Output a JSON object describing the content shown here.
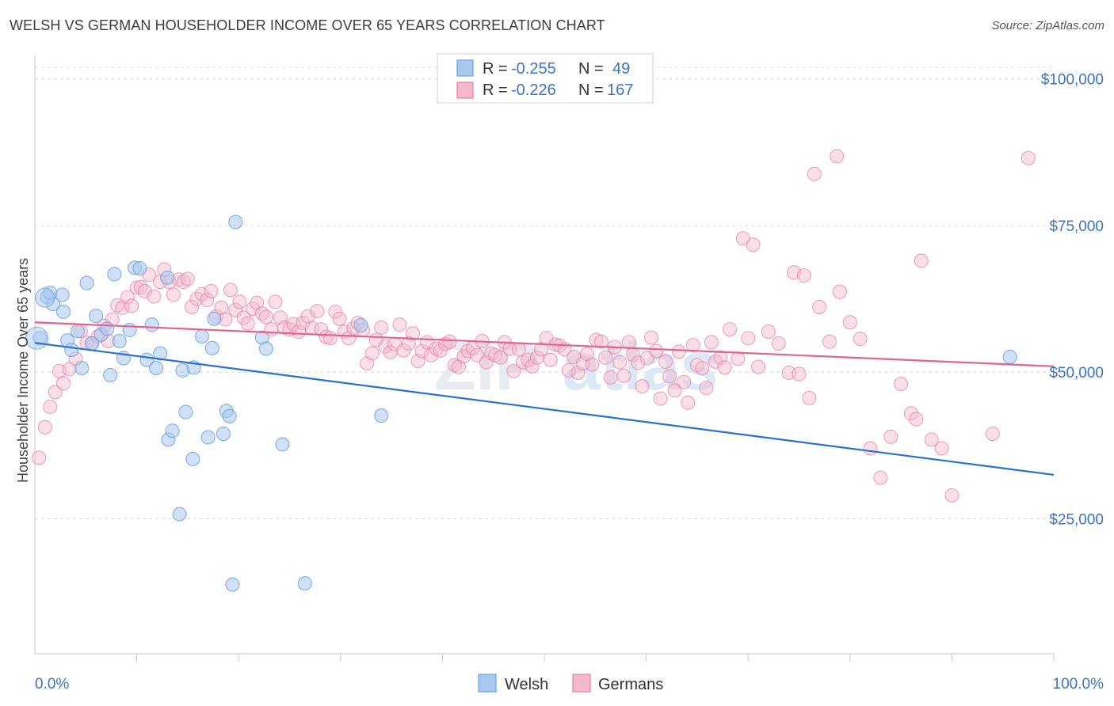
{
  "title": "WELSH VS GERMAN HOUSEHOLDER INCOME OVER 65 YEARS CORRELATION CHART",
  "source": "Source: ZipAtlas.com",
  "colors": {
    "welsh": "#6a9fe0",
    "welsh_fill": "#a9c8f0",
    "german": "#e87fa3",
    "german_fill": "#f4b8cc",
    "welsh_line": "#2a6fd6",
    "german_line": "#e0648f"
  },
  "chart_data": {
    "type": "scatter",
    "title": "WELSH VS GERMAN HOUSEHOLDER INCOME OVER 65 YEARS CORRELATION CHART",
    "xlabel": "",
    "ylabel": "Householder Income Over 65 years",
    "xlim": [
      0,
      100
    ],
    "ylim": [
      2000,
      104000
    ],
    "x_tick_labels": [
      "0.0%",
      "100.0%"
    ],
    "y_ticks": [
      25000,
      50000,
      75000,
      100000
    ],
    "y_tick_labels": [
      "$25,000",
      "$50,000",
      "$75,000",
      "$100,000"
    ],
    "grid": "horizontal dashed",
    "legend_position": "top-center",
    "stats": [
      {
        "r_label": "R =",
        "r": "-0.255",
        "n_label": "N =",
        "n": "49"
      },
      {
        "r_label": "R =",
        "r": "-0.226",
        "n_label": "N =",
        "n": "167"
      }
    ],
    "series": [
      {
        "name": "Welsh",
        "trend": {
          "x": [
            0,
            100
          ],
          "y": [
            55000,
            32500
          ]
        },
        "points": [
          [
            0.5,
            55800
          ],
          [
            1.2,
            62800
          ],
          [
            1.5,
            63500
          ],
          [
            1.8,
            61600
          ],
          [
            2.7,
            63200
          ],
          [
            2.8,
            60300
          ],
          [
            3.2,
            55400
          ],
          [
            3.6,
            53800
          ],
          [
            4.2,
            57000
          ],
          [
            4.6,
            50700
          ],
          [
            5.1,
            65200
          ],
          [
            5.6,
            54900
          ],
          [
            6.0,
            59600
          ],
          [
            6.5,
            56400
          ],
          [
            7.1,
            57400
          ],
          [
            7.4,
            49500
          ],
          [
            7.8,
            66700
          ],
          [
            8.3,
            55300
          ],
          [
            8.7,
            52400
          ],
          [
            9.3,
            57200
          ],
          [
            9.8,
            67800
          ],
          [
            10.3,
            67700
          ],
          [
            11.0,
            52100
          ],
          [
            11.5,
            58100
          ],
          [
            11.9,
            50700
          ],
          [
            12.3,
            53200
          ],
          [
            13.0,
            66100
          ],
          [
            13.1,
            38500
          ],
          [
            13.5,
            40000
          ],
          [
            14.2,
            25800
          ],
          [
            14.5,
            50300
          ],
          [
            14.8,
            43200
          ],
          [
            15.6,
            50800
          ],
          [
            15.5,
            35200
          ],
          [
            16.4,
            56100
          ],
          [
            17.0,
            38900
          ],
          [
            17.4,
            54100
          ],
          [
            17.6,
            59100
          ],
          [
            18.5,
            39500
          ],
          [
            18.8,
            43400
          ],
          [
            19.1,
            42500
          ],
          [
            19.4,
            13800
          ],
          [
            19.7,
            75600
          ],
          [
            22.3,
            55900
          ],
          [
            22.7,
            54000
          ],
          [
            24.3,
            37700
          ],
          [
            26.5,
            14000
          ],
          [
            32.0,
            58000
          ],
          [
            34.0,
            42600
          ],
          [
            95.7,
            52600
          ]
        ],
        "big_points": [
          [
            0.2,
            55800
          ],
          [
            1.0,
            62700
          ]
        ]
      },
      {
        "name": "Germans",
        "trend": {
          "x": [
            0,
            100
          ],
          "y": [
            58500,
            51000
          ]
        },
        "points": [
          [
            0.4,
            35400
          ],
          [
            1.0,
            40600
          ],
          [
            1.5,
            44100
          ],
          [
            2.0,
            46600
          ],
          [
            2.4,
            50200
          ],
          [
            2.8,
            48100
          ],
          [
            3.4,
            50500
          ],
          [
            4.0,
            52300
          ],
          [
            4.5,
            57000
          ],
          [
            5.1,
            55000
          ],
          [
            5.6,
            54900
          ],
          [
            6.2,
            56100
          ],
          [
            6.8,
            57900
          ],
          [
            7.2,
            55300
          ],
          [
            7.6,
            59000
          ],
          [
            8.1,
            61400
          ],
          [
            8.6,
            61000
          ],
          [
            9.1,
            62800
          ],
          [
            9.5,
            61300
          ],
          [
            10.0,
            64400
          ],
          [
            10.4,
            64500
          ],
          [
            10.8,
            63800
          ],
          [
            11.2,
            66600
          ],
          [
            11.7,
            62900
          ],
          [
            12.3,
            65400
          ],
          [
            12.7,
            67500
          ],
          [
            13.2,
            65400
          ],
          [
            13.6,
            63200
          ],
          [
            14.1,
            65800
          ],
          [
            14.6,
            65400
          ],
          [
            15.0,
            65900
          ],
          [
            15.4,
            61100
          ],
          [
            15.9,
            62500
          ],
          [
            16.4,
            63300
          ],
          [
            16.9,
            62300
          ],
          [
            17.3,
            63800
          ],
          [
            17.8,
            59500
          ],
          [
            18.3,
            61000
          ],
          [
            18.7,
            59000
          ],
          [
            19.2,
            64000
          ],
          [
            19.7,
            60600
          ],
          [
            20.1,
            62000
          ],
          [
            20.5,
            59300
          ],
          [
            20.9,
            58300
          ],
          [
            21.4,
            60800
          ],
          [
            21.8,
            61800
          ],
          [
            22.3,
            60000
          ],
          [
            22.7,
            59400
          ],
          [
            23.2,
            57300
          ],
          [
            23.6,
            62000
          ],
          [
            24.1,
            59300
          ],
          [
            24.5,
            57600
          ],
          [
            25.0,
            57300
          ],
          [
            25.4,
            58200
          ],
          [
            25.9,
            56900
          ],
          [
            26.3,
            58400
          ],
          [
            26.8,
            59500
          ],
          [
            27.2,
            57500
          ],
          [
            27.7,
            60400
          ],
          [
            28.1,
            57300
          ],
          [
            28.6,
            56000
          ],
          [
            29.0,
            55800
          ],
          [
            29.5,
            60300
          ],
          [
            29.9,
            59100
          ],
          [
            30.4,
            56900
          ],
          [
            30.8,
            55800
          ],
          [
            31.3,
            57500
          ],
          [
            31.7,
            58400
          ],
          [
            32.2,
            57200
          ],
          [
            32.6,
            51500
          ],
          [
            33.1,
            53200
          ],
          [
            33.5,
            55500
          ],
          [
            34.0,
            57600
          ],
          [
            34.4,
            54400
          ],
          [
            34.9,
            53400
          ],
          [
            35.3,
            54800
          ],
          [
            35.8,
            58100
          ],
          [
            36.2,
            53700
          ],
          [
            36.7,
            54900
          ],
          [
            37.1,
            56600
          ],
          [
            37.6,
            51900
          ],
          [
            38.0,
            53600
          ],
          [
            38.5,
            55100
          ],
          [
            38.9,
            52900
          ],
          [
            39.4,
            54000
          ],
          [
            39.8,
            53700
          ],
          [
            40.3,
            54800
          ],
          [
            40.7,
            55200
          ],
          [
            41.2,
            51200
          ],
          [
            41.6,
            50900
          ],
          [
            42.1,
            52700
          ],
          [
            42.5,
            53600
          ],
          [
            43.0,
            54100
          ],
          [
            43.4,
            52900
          ],
          [
            43.9,
            55300
          ],
          [
            44.3,
            51700
          ],
          [
            44.8,
            53200
          ],
          [
            45.2,
            52900
          ],
          [
            45.7,
            52500
          ],
          [
            46.1,
            55100
          ],
          [
            46.6,
            54000
          ],
          [
            47.0,
            50200
          ],
          [
            47.5,
            53900
          ],
          [
            47.9,
            51700
          ],
          [
            48.4,
            52100
          ],
          [
            48.8,
            51000
          ],
          [
            49.3,
            52500
          ],
          [
            49.7,
            53900
          ],
          [
            50.2,
            55800
          ],
          [
            50.6,
            52100
          ],
          [
            51.1,
            54700
          ],
          [
            51.5,
            54500
          ],
          [
            52.0,
            53900
          ],
          [
            52.4,
            50300
          ],
          [
            52.9,
            52600
          ],
          [
            53.3,
            49900
          ],
          [
            53.8,
            51500
          ],
          [
            54.2,
            53100
          ],
          [
            54.7,
            51300
          ],
          [
            55.1,
            55500
          ],
          [
            55.6,
            55200
          ],
          [
            56.0,
            52500
          ],
          [
            56.5,
            49100
          ],
          [
            56.9,
            54300
          ],
          [
            57.4,
            51700
          ],
          [
            57.8,
            49400
          ],
          [
            58.3,
            55100
          ],
          [
            58.7,
            53000
          ],
          [
            59.2,
            51600
          ],
          [
            59.6,
            47600
          ],
          [
            60.1,
            52400
          ],
          [
            60.5,
            55900
          ],
          [
            61.0,
            53600
          ],
          [
            61.4,
            45500
          ],
          [
            61.9,
            51800
          ],
          [
            62.3,
            49300
          ],
          [
            62.8,
            46900
          ],
          [
            63.2,
            53500
          ],
          [
            63.7,
            48300
          ],
          [
            64.1,
            44800
          ],
          [
            64.6,
            54600
          ],
          [
            65.0,
            51200
          ],
          [
            65.5,
            50700
          ],
          [
            65.9,
            47300
          ],
          [
            66.4,
            55100
          ],
          [
            66.8,
            51800
          ],
          [
            67.3,
            52500
          ],
          [
            67.7,
            50800
          ],
          [
            68.2,
            57300
          ],
          [
            69.0,
            52300
          ],
          [
            70.0,
            55800
          ],
          [
            71.0,
            50900
          ],
          [
            72.0,
            56900
          ],
          [
            73.0,
            54900
          ],
          [
            74.0,
            49900
          ],
          [
            75.0,
            49700
          ],
          [
            76.0,
            45600
          ],
          [
            77.0,
            61100
          ],
          [
            78.0,
            55200
          ],
          [
            79.0,
            63700
          ],
          [
            80.0,
            58500
          ],
          [
            81.0,
            55700
          ],
          [
            82.0,
            37000
          ],
          [
            83.0,
            32000
          ],
          [
            84.0,
            39000
          ],
          [
            85.0,
            48000
          ],
          [
            86.0,
            43000
          ],
          [
            87.0,
            69000
          ],
          [
            88.0,
            38500
          ],
          [
            89.0,
            37000
          ],
          [
            90.0,
            29000
          ],
          [
            94.0,
            39500
          ],
          [
            97.5,
            86500
          ],
          [
            76.5,
            83800
          ],
          [
            78.7,
            86800
          ],
          [
            69.5,
            72800
          ],
          [
            70.5,
            71700
          ],
          [
            74.5,
            67000
          ],
          [
            75.5,
            66500
          ],
          [
            86.5,
            42000
          ]
        ]
      }
    ]
  },
  "legend": {
    "welsh": "Welsh",
    "germans": "Germans"
  },
  "watermark": {
    "zip": "ZIP",
    "atlas": "atlas"
  }
}
